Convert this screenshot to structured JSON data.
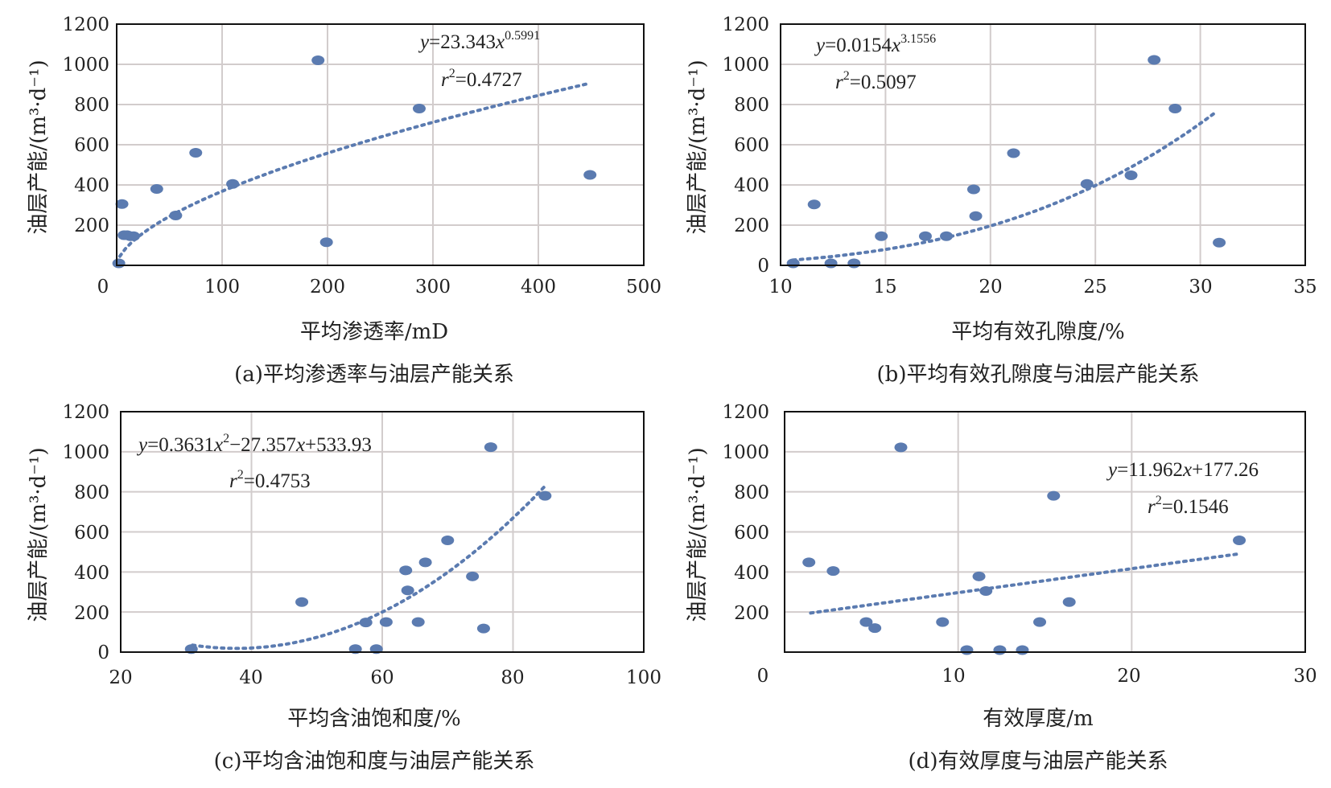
{
  "colors": {
    "marker": "#5b7bb0",
    "trend": "#5b7bb0",
    "grid": "#d2cccc",
    "frame": "#111111"
  },
  "chart_data": [
    {
      "type": "scatter",
      "caption": "(a)平均渗透率与油层产能关系",
      "xlabel": "平均渗透率/mD",
      "ylabel": "油层产能/(m³·d⁻¹)",
      "xlim": [
        0,
        500
      ],
      "ylim": [
        0,
        1200
      ],
      "xticks": [
        "0",
        "100",
        "200",
        "300",
        "400",
        "500"
      ],
      "yticks": [
        "200",
        "400",
        "600",
        "800",
        "1000",
        "1200"
      ],
      "grid": true,
      "points": [
        [
          2,
          10
        ],
        [
          5,
          305
        ],
        [
          7,
          150
        ],
        [
          10,
          150
        ],
        [
          13,
          145
        ],
        [
          16,
          145
        ],
        [
          38,
          380
        ],
        [
          56,
          248
        ],
        [
          75,
          560
        ],
        [
          110,
          405
        ],
        [
          191,
          1020
        ],
        [
          199,
          115
        ],
        [
          287,
          780
        ],
        [
          449,
          450
        ]
      ],
      "trend": {
        "kind": "power",
        "a": 23.343,
        "b": 0.5991,
        "x_range": [
          3,
          445
        ]
      },
      "equation": {
        "y": "y",
        "eq1": "=23.343",
        "x": "x",
        "exp": "0.5991",
        "r": "r",
        "sup": "2",
        "eq2": "=0.4727"
      }
    },
    {
      "type": "scatter",
      "caption": "(b)平均有效孔隙度与油层产能关系",
      "xlabel": "平均有效孔隙度/%",
      "ylabel": "油层产能/(m³·d⁻¹)",
      "xlim": [
        10,
        35
      ],
      "ylim": [
        0,
        1200
      ],
      "xticks": [
        "10",
        "15",
        "20",
        "25",
        "30",
        "35"
      ],
      "yticks": [
        "0",
        "200",
        "400",
        "600",
        "800",
        "1000",
        "1200"
      ],
      "grid": true,
      "points": [
        [
          10.6,
          10
        ],
        [
          11.6,
          303
        ],
        [
          12.4,
          10
        ],
        [
          13.5,
          10
        ],
        [
          14.8,
          145
        ],
        [
          16.9,
          145
        ],
        [
          17.9,
          145
        ],
        [
          19.2,
          378
        ],
        [
          19.3,
          245
        ],
        [
          21.1,
          558
        ],
        [
          24.6,
          405
        ],
        [
          26.7,
          448
        ],
        [
          27.8,
          1022
        ],
        [
          28.8,
          780
        ],
        [
          30.9,
          113
        ]
      ],
      "trend": {
        "kind": "power",
        "a": 0.0154,
        "b": 3.1556,
        "x_range": [
          10.6,
          30.7
        ]
      },
      "equation": {
        "y": "y",
        "eq1": "=0.0154",
        "x": "x",
        "exp": "3.1556",
        "r": "r",
        "sup": "2",
        "eq2": "=0.5097"
      }
    },
    {
      "type": "scatter",
      "caption": "(c)平均含油饱和度与油层产能关系",
      "xlabel": "平均含油饱和度/%",
      "ylabel": "油层产能/(m³·d⁻¹)",
      "xlim": [
        20,
        100
      ],
      "ylim": [
        0,
        1200
      ],
      "xticks": [
        "20",
        "40",
        "60",
        "80",
        "100"
      ],
      "yticks": [
        "0",
        "200",
        "400",
        "600",
        "800",
        "1000",
        "1200"
      ],
      "grid": true,
      "points": [
        [
          30.8,
          15
        ],
        [
          47.7,
          250
        ],
        [
          55.9,
          15
        ],
        [
          57.5,
          148
        ],
        [
          59.1,
          15
        ],
        [
          60.6,
          150
        ],
        [
          63.6,
          408
        ],
        [
          63.9,
          308
        ],
        [
          65.5,
          150
        ],
        [
          66.6,
          448
        ],
        [
          70.0,
          558
        ],
        [
          73.8,
          378
        ],
        [
          75.5,
          118
        ],
        [
          76.6,
          1023
        ],
        [
          84.9,
          780
        ]
      ],
      "trend": {
        "kind": "poly2",
        "a": 0.3631,
        "b": -27.357,
        "c": 533.93,
        "x_range": [
          31,
          85
        ]
      },
      "equation": {
        "y": "y",
        "eq1": "=0.3631",
        "x": "x",
        "sup_a": "2",
        "eq_mid": "−27.357",
        "x2": "x",
        "eq_tail": "+533.93",
        "r": "r",
        "sup": "2",
        "eq2": "=0.4753"
      }
    },
    {
      "type": "scatter",
      "caption": "(d)有效厚度与油层产能关系",
      "xlabel": "有效厚度/m",
      "ylabel": "油层产能/(m³·d⁻¹)",
      "xlim": [
        0,
        30
      ],
      "ylim": [
        0,
        1200
      ],
      "xticks": [
        "0",
        "10",
        "20",
        "30"
      ],
      "yticks": [
        "200",
        "400",
        "600",
        "800",
        "1000",
        "1200"
      ],
      "grid": true,
      "points": [
        [
          1.4,
          448
        ],
        [
          2.8,
          405
        ],
        [
          4.7,
          150
        ],
        [
          5.2,
          120
        ],
        [
          6.7,
          1022
        ],
        [
          9.1,
          150
        ],
        [
          10.5,
          10
        ],
        [
          11.2,
          378
        ],
        [
          11.6,
          305
        ],
        [
          12.4,
          10
        ],
        [
          13.7,
          10
        ],
        [
          14.7,
          150
        ],
        [
          15.5,
          780
        ],
        [
          16.4,
          250
        ],
        [
          26.2,
          558
        ]
      ],
      "trend": {
        "kind": "linear",
        "a": 11.962,
        "b": 177.26,
        "x_range": [
          1.5,
          26.2
        ]
      },
      "equation": {
        "y": "y",
        "eq1": "=11.962",
        "x": "x",
        "eq_tail": "+177.26",
        "r": "r",
        "sup": "2",
        "eq2": "=0.1546"
      }
    }
  ]
}
